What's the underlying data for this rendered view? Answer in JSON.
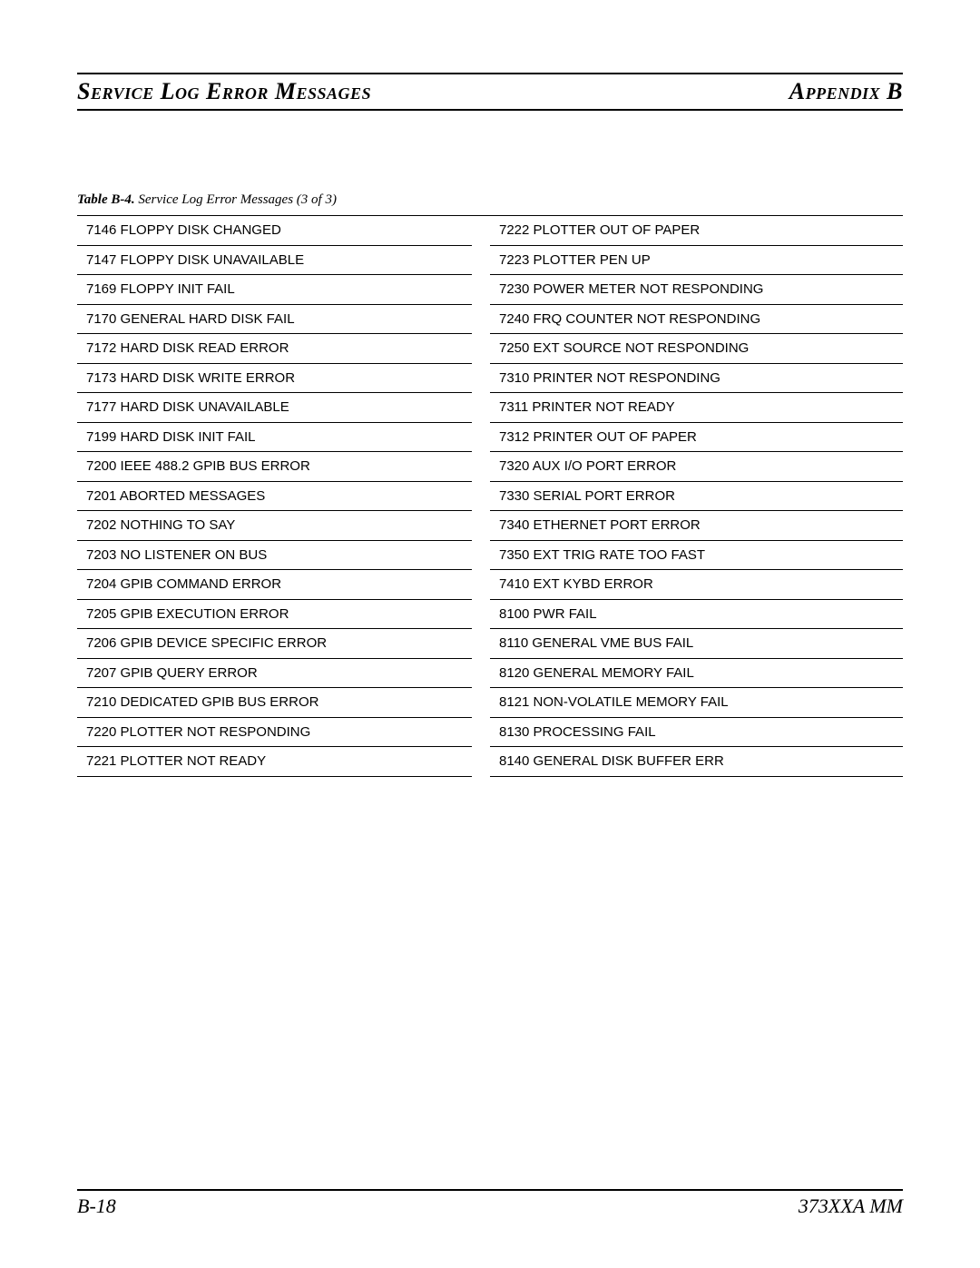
{
  "header": {
    "left": "Service Log Error Messages",
    "right": "Appendix B"
  },
  "caption": {
    "label": "Table B-4.",
    "text": "Service Log Error Messages (3 of 3)"
  },
  "table": {
    "left": [
      "7146 FLOPPY DISK CHANGED",
      "7147 FLOPPY DISK UNAVAILABLE",
      "7169 FLOPPY INIT FAIL",
      "7170 GENERAL HARD DISK FAIL",
      "7172 HARD DISK READ ERROR",
      "7173 HARD DISK WRITE ERROR",
      "7177 HARD DISK UNAVAILABLE",
      "7199 HARD DISK INIT FAIL",
      "7200 IEEE 488.2 GPIB BUS ERROR",
      "7201 ABORTED MESSAGES",
      "7202 NOTHING TO SAY",
      "7203 NO LISTENER ON BUS",
      "7204 GPIB COMMAND ERROR",
      "7205 GPIB EXECUTION ERROR",
      "7206 GPIB DEVICE SPECIFIC ERROR",
      "7207 GPIB QUERY ERROR",
      "7210 DEDICATED GPIB BUS ERROR",
      "7220 PLOTTER NOT RESPONDING",
      "7221 PLOTTER NOT READY"
    ],
    "right": [
      "7222 PLOTTER OUT OF PAPER",
      "7223 PLOTTER PEN UP",
      "7230 POWER METER NOT RESPONDING",
      "7240 FRQ COUNTER NOT RESPONDING",
      "7250 EXT SOURCE NOT RESPONDING",
      "7310 PRINTER NOT RESPONDING",
      "7311 PRINTER NOT READY",
      "7312 PRINTER OUT OF PAPER",
      "7320 AUX I/O PORT ERROR",
      "7330 SERIAL PORT ERROR",
      "7340 ETHERNET PORT ERROR",
      "7350 EXT TRIG RATE TOO FAST",
      "7410 EXT KYBD ERROR",
      "8100 PWR FAIL",
      "8110 GENERAL VME BUS FAIL",
      "8120 GENERAL MEMORY FAIL",
      "8121 NON-VOLATILE MEMORY FAIL",
      "8130 PROCESSING FAIL",
      "8140 GENERAL DISK BUFFER ERR"
    ]
  },
  "footer": {
    "left": "B-18",
    "right": "373XXA MM"
  }
}
